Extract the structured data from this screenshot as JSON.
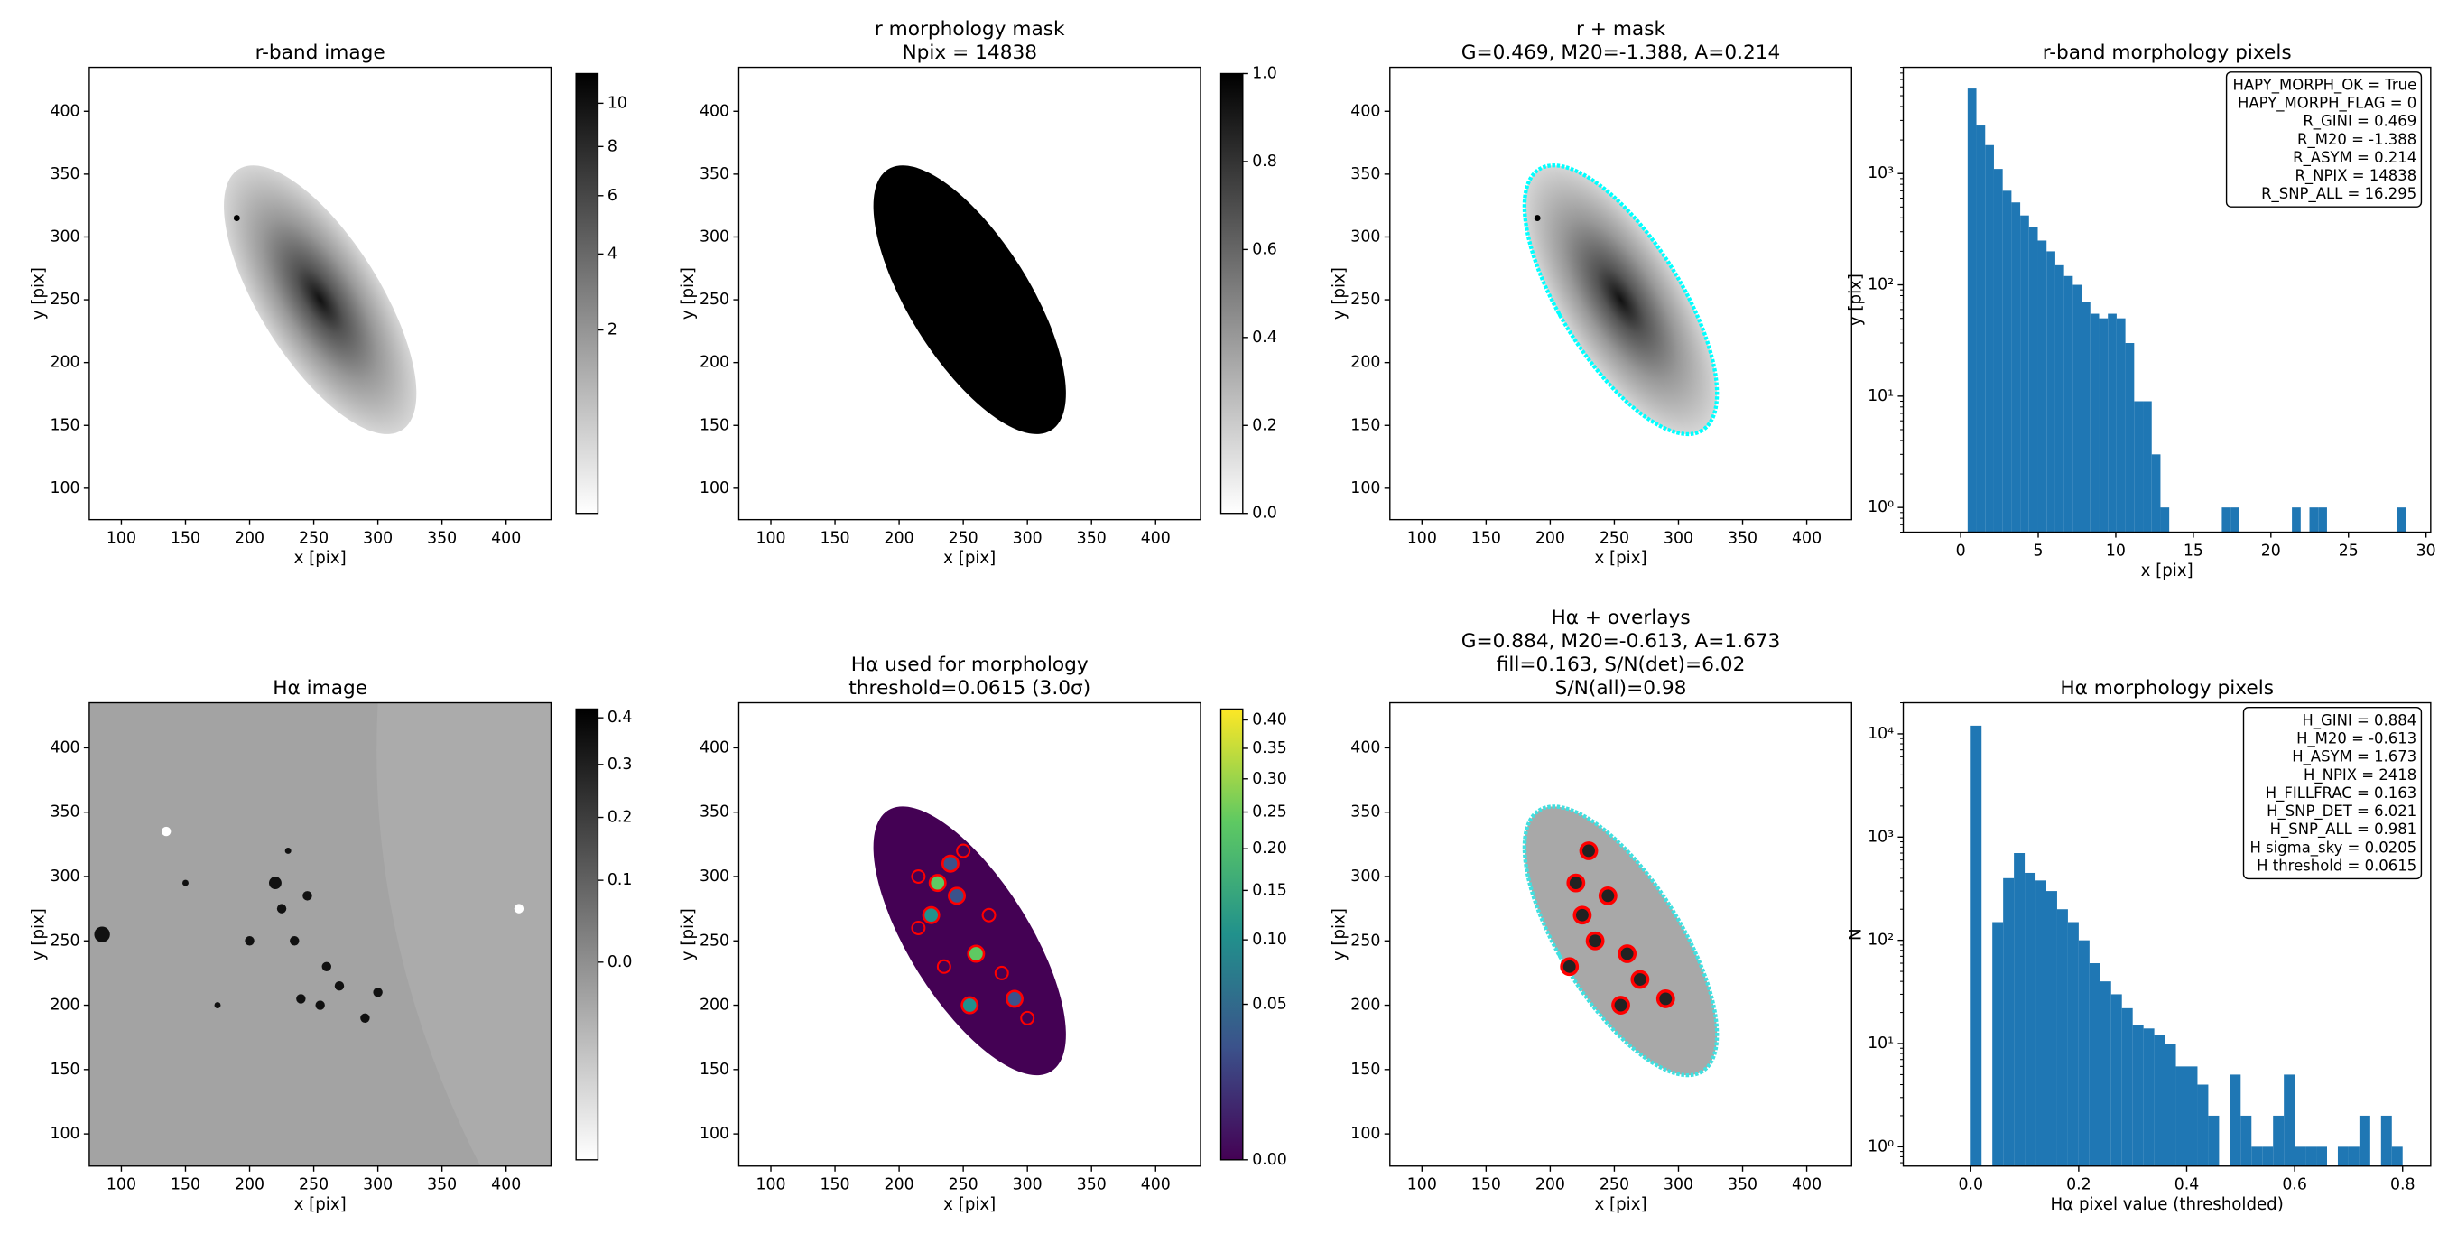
{
  "chart_data": [
    {
      "type": "image",
      "cmap": "gray_r",
      "title": [
        "r-band image"
      ],
      "xlabel": "x [pix]",
      "ylabel": "y [pix]",
      "xlim": [
        75,
        435
      ],
      "xticks": [
        100,
        150,
        200,
        250,
        300,
        350,
        400
      ],
      "ylim": [
        75,
        435
      ],
      "yticks": [
        100,
        150,
        200,
        250,
        300,
        350,
        400
      ],
      "colorbar": {
        "cmap": "gray_r",
        "scale": "sqrt",
        "clim": [
          0,
          11.5
        ],
        "ticks": [
          2,
          4,
          6,
          8,
          10
        ]
      }
    },
    {
      "type": "image",
      "cmap": "gray_r",
      "title": [
        "r morphology mask",
        "Npix = 14838"
      ],
      "xlabel": "x [pix]",
      "ylabel": "y [pix]",
      "xlim": [
        75,
        435
      ],
      "xticks": [
        100,
        150,
        200,
        250,
        300,
        350,
        400
      ],
      "ylim": [
        75,
        435
      ],
      "yticks": [
        100,
        150,
        200,
        250,
        300,
        350,
        400
      ],
      "colorbar": {
        "cmap": "gray_r",
        "scale": "linear",
        "clim": [
          0,
          1
        ],
        "ticks": [
          {
            "value": 0,
            "label": "0.0"
          },
          {
            "value": 0.2,
            "label": "0.2"
          },
          {
            "value": 0.4,
            "label": "0.4"
          },
          {
            "value": 0.6,
            "label": "0.6"
          },
          {
            "value": 0.8,
            "label": "0.8"
          },
          {
            "value": 1,
            "label": "1.0"
          }
        ]
      }
    },
    {
      "type": "image",
      "cmap": "gray_r",
      "title": [
        "r + mask",
        "G=0.469, M20=-1.388, A=0.214"
      ],
      "xlabel": "x [pix]",
      "ylabel": "y [pix]",
      "xlim": [
        75,
        435
      ],
      "xticks": [
        100,
        150,
        200,
        250,
        300,
        350,
        400
      ],
      "ylim": [
        75,
        435
      ],
      "yticks": [
        100,
        150,
        200,
        250,
        300,
        350,
        400
      ]
    },
    {
      "type": "histogram",
      "color": "#1f77b4",
      "yscale": "log",
      "title": [
        "r-band morphology pixels"
      ],
      "xlabel": "x [pix]",
      "ylabel": "y [pix]",
      "xlim": [
        -3.7,
        30.3
      ],
      "xticks": [
        0,
        5,
        10,
        15,
        20,
        25,
        30
      ],
      "ylim": [
        0.6,
        9000
      ],
      "yticks": [
        {
          "value": 1,
          "label": "10⁰"
        },
        {
          "value": 10,
          "label": "10¹"
        },
        {
          "value": 100,
          "label": "10²"
        },
        {
          "value": 1000,
          "label": "10³"
        }
      ],
      "bins": [
        0.45,
        1.015,
        1.58,
        2.145,
        2.71,
        3.275,
        3.84,
        4.405,
        4.97,
        5.535,
        6.1,
        6.665,
        7.23,
        7.795,
        8.36,
        8.925,
        9.49,
        10.055,
        10.62,
        11.185,
        11.75,
        12.315,
        12.88,
        13.445,
        14.01,
        14.575,
        15.14,
        15.705,
        16.27,
        16.835,
        17.4,
        17.965,
        18.53,
        19.095,
        19.66,
        20.225,
        20.79,
        21.355,
        21.92,
        22.485,
        23.05,
        23.615,
        24.18,
        24.745,
        25.31,
        25.875,
        26.44,
        27.005,
        27.57,
        28.135,
        28.7
      ],
      "values": [
        5800,
        2700,
        1800,
        1100,
        700,
        550,
        420,
        330,
        250,
        200,
        150,
        120,
        100,
        70,
        55,
        50,
        55,
        50,
        30,
        9,
        9,
        3,
        1,
        0,
        0,
        0,
        0,
        0,
        0,
        1,
        1,
        0,
        0,
        0,
        0,
        0,
        0,
        1,
        0,
        1,
        1,
        0,
        0,
        0,
        0,
        0,
        0,
        0,
        0,
        1
      ],
      "annotation_loc": "upper right",
      "annotations": [
        "HAPY_MORPH_OK = True",
        "HAPY_MORPH_FLAG = 0",
        "R_GINI = 0.469",
        "R_M20 = -1.388",
        "R_ASYM = 0.214",
        "R_NPIX = 14838",
        "R_SNP_ALL = 16.295"
      ]
    },
    {
      "type": "image",
      "cmap": "gray_r",
      "title": [
        "Hα image"
      ],
      "xlabel": "x [pix]",
      "ylabel": "y [pix]",
      "xlim": [
        75,
        435
      ],
      "xticks": [
        100,
        150,
        200,
        250,
        300,
        350,
        400
      ],
      "ylim": [
        75,
        435
      ],
      "yticks": [
        100,
        150,
        200,
        250,
        300,
        350,
        400
      ],
      "colorbar": {
        "cmap": "gray_r",
        "scale": "sqrt",
        "clim": [
          -0.1,
          0.42
        ],
        "ticks": [
          {
            "value": 0,
            "label": "0.0"
          },
          {
            "value": 0.1,
            "label": "0.1"
          },
          {
            "value": 0.2,
            "label": "0.2"
          },
          {
            "value": 0.3,
            "label": "0.3"
          },
          {
            "value": 0.4,
            "label": "0.4"
          }
        ]
      }
    },
    {
      "type": "image",
      "cmap": "viridis",
      "title": [
        "Hα used for morphology",
        "threshold=0.0615 (3.0σ)"
      ],
      "xlabel": "x [pix]",
      "ylabel": "y [pix]",
      "xlim": [
        75,
        435
      ],
      "xticks": [
        100,
        150,
        200,
        250,
        300,
        350,
        400
      ],
      "ylim": [
        75,
        435
      ],
      "yticks": [
        100,
        150,
        200,
        250,
        300,
        350,
        400
      ],
      "colorbar": {
        "cmap": "viridis",
        "scale": "sqrt",
        "clim": [
          0,
          0.42
        ],
        "ticks": [
          {
            "value": 0,
            "label": "0.00"
          },
          {
            "value": 0.05,
            "label": "0.05"
          },
          {
            "value": 0.1,
            "label": "0.10"
          },
          {
            "value": 0.15,
            "label": "0.15"
          },
          {
            "value": 0.2,
            "label": "0.20"
          },
          {
            "value": 0.25,
            "label": "0.25"
          },
          {
            "value": 0.3,
            "label": "0.30"
          },
          {
            "value": 0.35,
            "label": "0.35"
          },
          {
            "value": 0.4,
            "label": "0.40"
          }
        ]
      }
    },
    {
      "type": "image",
      "cmap": "gray_r",
      "title": [
        "Hα + overlays",
        "G=0.884, M20=-0.613, A=1.673",
        "fill=0.163, S/N(det)=6.02",
        "S/N(all)=0.98"
      ],
      "xlabel": "x [pix]",
      "ylabel": "y [pix]",
      "xlim": [
        75,
        435
      ],
      "xticks": [
        100,
        150,
        200,
        250,
        300,
        350,
        400
      ],
      "ylim": [
        75,
        435
      ],
      "yticks": [
        100,
        150,
        200,
        250,
        300,
        350,
        400
      ]
    },
    {
      "type": "histogram",
      "color": "#1f77b4",
      "yscale": "log",
      "title": [
        "Hα morphology pixels"
      ],
      "xlabel": "Hα pixel value (thresholded)",
      "ylabel": "N",
      "xlim": [
        -0.125,
        0.852
      ],
      "xticks": [
        {
          "value": 0,
          "label": "0.0"
        },
        {
          "value": 0.2,
          "label": "0.2"
        },
        {
          "value": 0.4,
          "label": "0.4"
        },
        {
          "value": 0.6,
          "label": "0.6"
        },
        {
          "value": 0.8,
          "label": "0.8"
        }
      ],
      "ylim": [
        0.65,
        20000
      ],
      "yticks": [
        {
          "value": 1,
          "label": "10⁰"
        },
        {
          "value": 10,
          "label": "10¹"
        },
        {
          "value": 100,
          "label": "10²"
        },
        {
          "value": 1000,
          "label": "10³"
        },
        {
          "value": 10000,
          "label": "10⁴"
        }
      ],
      "bins": [
        0,
        0.02,
        0.04,
        0.06,
        0.08,
        0.1,
        0.12,
        0.14,
        0.16,
        0.18,
        0.2,
        0.22,
        0.24,
        0.26,
        0.28,
        0.3,
        0.32,
        0.34,
        0.36,
        0.38,
        0.4,
        0.42,
        0.44,
        0.46,
        0.48,
        0.5,
        0.52,
        0.54,
        0.56,
        0.58,
        0.6,
        0.62,
        0.64,
        0.66,
        0.68,
        0.7,
        0.72,
        0.74,
        0.76,
        0.78,
        0.8
      ],
      "values": [
        12000,
        0,
        150,
        400,
        700,
        450,
        380,
        300,
        200,
        150,
        100,
        60,
        40,
        30,
        22,
        15,
        14,
        12,
        10,
        6,
        6,
        4,
        2,
        0,
        5,
        2,
        1,
        1,
        2,
        5,
        1,
        1,
        1,
        0,
        1,
        1,
        2,
        0,
        2,
        1
      ],
      "annotation_loc": "upper right",
      "annotations": [
        "H_GINI = 0.884",
        "H_M20 = -0.613",
        "H_ASYM = 1.673",
        "H_NPIX = 2418",
        "H_FILLFRAC = 0.163",
        "H_SNP_DET = 6.021",
        "H_SNP_ALL = 0.981",
        "H sigma_sky = 0.0205",
        "H threshold = 0.0615"
      ]
    }
  ]
}
